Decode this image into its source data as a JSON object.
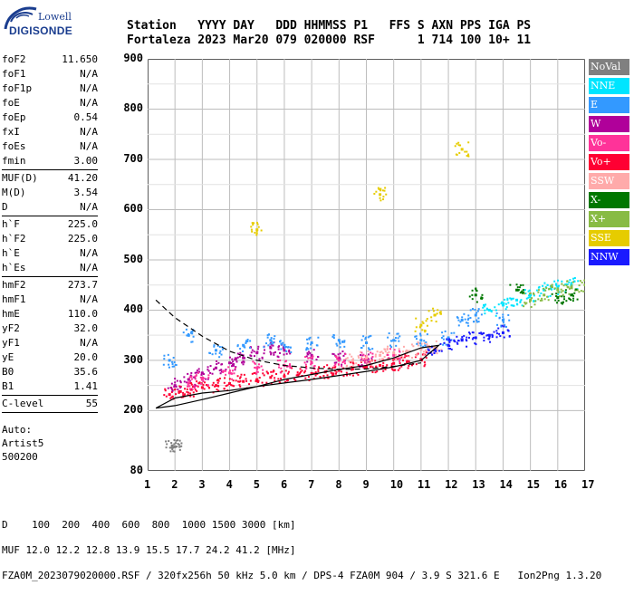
{
  "logo": {
    "line1": "Lowell",
    "line2": "DIGISONDE"
  },
  "header": {
    "labels": [
      "Station",
      "YYYY",
      "DAY",
      "DDD",
      "HHMMSS",
      "P1",
      "FFS",
      "S",
      "AXN",
      "PPS",
      "IGA",
      "PS"
    ],
    "values": [
      "Fortaleza",
      "2023",
      "Mar20",
      "079",
      "020000",
      "RSF",
      "",
      "1",
      "714",
      "100",
      "10+",
      "11"
    ]
  },
  "params": [
    [
      {
        "name": "foF2",
        "value": "11.650"
      },
      {
        "name": "foF1",
        "value": "N/A"
      },
      {
        "name": "foF1p",
        "value": "N/A"
      },
      {
        "name": "foE",
        "value": "N/A"
      },
      {
        "name": "foEp",
        "value": "0.54"
      },
      {
        "name": "fxI",
        "value": "N/A"
      },
      {
        "name": "foEs",
        "value": "N/A"
      },
      {
        "name": "fmin",
        "value": "3.00"
      }
    ],
    [
      {
        "name": "MUF(D)",
        "value": "41.20"
      },
      {
        "name": "M(D)",
        "value": "3.54"
      },
      {
        "name": "D",
        "value": "N/A"
      }
    ],
    [
      {
        "name": "h`F",
        "value": "225.0"
      },
      {
        "name": "h`F2",
        "value": "225.0"
      },
      {
        "name": "h`E",
        "value": "N/A"
      },
      {
        "name": "h`Es",
        "value": "N/A"
      }
    ],
    [
      {
        "name": "hmF2",
        "value": "273.7"
      },
      {
        "name": "hmF1",
        "value": "N/A"
      },
      {
        "name": "hmE",
        "value": "110.0"
      },
      {
        "name": "yF2",
        "value": "32.0"
      },
      {
        "name": "yF1",
        "value": "N/A"
      },
      {
        "name": "yE",
        "value": "20.0"
      },
      {
        "name": "B0",
        "value": "35.6"
      },
      {
        "name": "B1",
        "value": "1.41"
      }
    ],
    [
      {
        "name": "C-level",
        "value": "55"
      }
    ]
  ],
  "autoscaling": [
    "Auto:",
    "Artist5",
    "500200"
  ],
  "legend": [
    {
      "label": "NoVal",
      "color": "#808080"
    },
    {
      "label": "NNE",
      "color": "#00e5ff"
    },
    {
      "label": "E",
      "color": "#3399ff"
    },
    {
      "label": "W",
      "color": "#b0009a"
    },
    {
      "label": "Vo-",
      "color": "#ff3399"
    },
    {
      "label": "Vo+",
      "color": "#ff0033"
    },
    {
      "label": "SSW",
      "color": "#ffaaaa"
    },
    {
      "label": "X-",
      "color": "#007700"
    },
    {
      "label": "X+",
      "color": "#88bb44"
    },
    {
      "label": "SSE",
      "color": "#e6cc00"
    },
    {
      "label": "NNW",
      "color": "#1a1aff"
    }
  ],
  "footer": {
    "d_label": "D",
    "d_values": [
      "100",
      "200",
      "400",
      "600",
      "800",
      "1000",
      "1500",
      "3000"
    ],
    "d_unit": "[km]",
    "muf_label": "MUF",
    "muf_values": [
      "12.0",
      "12.2",
      "12.8",
      "13.9",
      "15.5",
      "17.7",
      "24.2",
      "41.2"
    ],
    "muf_unit": "[MHz]",
    "fileinfo": "FZA0M_2023079020000.RSF / 320fx256h 50 kHz 5.0 km / DPS-4 FZA0M 904 / 3.9 S 321.6 E",
    "program": "Ion2Png 1.3.20"
  },
  "chart_data": {
    "type": "scatter",
    "title": "",
    "xlabel": "",
    "ylabel": "",
    "xlim": [
      1,
      17
    ],
    "ylim": [
      80,
      900
    ],
    "xticks": [
      1,
      2,
      3,
      4,
      5,
      6,
      7,
      8,
      9,
      10,
      11,
      12,
      13,
      14,
      15,
      16,
      17
    ],
    "yticks": [
      80,
      200,
      300,
      400,
      500,
      600,
      700,
      800,
      900
    ],
    "grid": true,
    "legend_position": "right",
    "series": [
      {
        "name": "Vo+",
        "color": "#ff0033",
        "x": [
          1.8,
          2.2,
          2.6,
          3.0,
          3.5,
          4.0,
          4.5,
          5.0,
          5.5,
          6.0,
          6.5,
          7.0,
          7.5,
          8.0,
          8.5,
          9.0,
          9.5,
          10.0,
          10.5,
          11.0
        ],
        "y": [
          232,
          238,
          242,
          246,
          250,
          254,
          258,
          262,
          266,
          268,
          271,
          274,
          277,
          280,
          283,
          287,
          290,
          294,
          298,
          302
        ]
      },
      {
        "name": "W",
        "color": "#b0009a",
        "x": [
          2.0,
          2.5,
          3.0,
          3.5,
          4.0,
          4.5,
          5.0,
          5.5,
          6.0,
          7.0,
          8.0,
          9.0
        ],
        "y": [
          250,
          262,
          275,
          285,
          295,
          305,
          315,
          325,
          320,
          310,
          305,
          300
        ]
      },
      {
        "name": "Vo-",
        "color": "#ff3399",
        "x": [
          2.5,
          3.0,
          4.0,
          5.0,
          6.0,
          7.0,
          8.0,
          9.0,
          10.0
        ],
        "y": [
          255,
          262,
          275,
          285,
          290,
          295,
          300,
          305,
          310
        ]
      },
      {
        "name": "SSW",
        "color": "#ffaaaa",
        "x": [
          8.5,
          9.0,
          9.5,
          10.0,
          10.5,
          11.0,
          11.5
        ],
        "y": [
          300,
          305,
          310,
          315,
          318,
          322,
          325
        ]
      },
      {
        "name": "E",
        "color": "#3399ff",
        "x": [
          1.8,
          2.5,
          3.5,
          4.5,
          5.5,
          6.0,
          7.0,
          8.0,
          9.0,
          10.0,
          11.0,
          12.0,
          12.5,
          13.0,
          14.0
        ],
        "y": [
          300,
          350,
          320,
          330,
          340,
          330,
          335,
          340,
          335,
          340,
          340,
          345,
          380,
          390,
          380
        ]
      },
      {
        "name": "NNW",
        "color": "#1a1aff",
        "x": [
          11.5,
          12.0,
          12.5,
          13.0,
          13.5,
          14.0
        ],
        "y": [
          320,
          330,
          340,
          345,
          350,
          355
        ]
      },
      {
        "name": "NNE",
        "color": "#00e5ff",
        "x": [
          13.5,
          14.0,
          14.5,
          15.0,
          15.5,
          16.0,
          16.5
        ],
        "y": [
          400,
          410,
          420,
          430,
          440,
          445,
          450
        ]
      },
      {
        "name": "X+",
        "color": "#88bb44",
        "x": [
          15.0,
          15.5,
          16.0,
          16.5,
          17.0
        ],
        "y": [
          420,
          430,
          440,
          445,
          450
        ]
      },
      {
        "name": "SSE",
        "color": "#e6cc00",
        "x": [
          11.0,
          11.5,
          12.5,
          9.5,
          5.0
        ],
        "y": [
          370,
          390,
          720,
          630,
          560
        ]
      },
      {
        "name": "X-",
        "color": "#007700",
        "x": [
          13.0,
          14.5,
          16.0,
          16.5
        ],
        "y": [
          430,
          440,
          425,
          430
        ]
      },
      {
        "name": "NoVal",
        "color": "#808080",
        "x": [
          1.9,
          2.0
        ],
        "y": [
          130,
          128
        ]
      }
    ],
    "curves": [
      {
        "name": "profile",
        "color": "#000000",
        "style": "solid",
        "x": [
          1.3,
          2.0,
          3.0,
          4.0,
          5.0,
          6.0,
          7.0,
          8.0,
          9.0,
          10.0,
          11.0,
          11.65,
          11.0,
          10.5,
          10.0,
          9.0,
          8.0,
          7.0,
          6.0,
          5.0,
          4.0,
          3.0,
          2.0,
          1.3
        ],
        "y": [
          205,
          225,
          235,
          240,
          248,
          255,
          262,
          270,
          278,
          287,
          300,
          330,
          325,
          315,
          305,
          290,
          282,
          272,
          262,
          248,
          235,
          222,
          210,
          205
        ]
      },
      {
        "name": "trace",
        "color": "#000000",
        "style": "dashed",
        "x": [
          1.3,
          2.0,
          3.0,
          4.0,
          5.0,
          6.0,
          7.0,
          8.0,
          9.0,
          10.0,
          11.0
        ],
        "y": [
          420,
          385,
          348,
          318,
          300,
          290,
          285,
          282,
          283,
          288,
          295
        ]
      }
    ]
  }
}
